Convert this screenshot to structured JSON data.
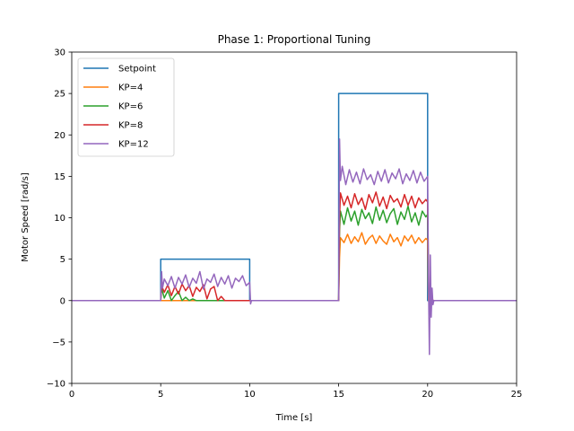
{
  "chart_data": {
    "type": "line",
    "title": "Phase 1: Proportional Tuning",
    "xlabel": "Time [s]",
    "ylabel": "Motor Speed [rad/s]",
    "xlim": [
      0,
      25
    ],
    "ylim": [
      -10,
      30
    ],
    "xticks": [
      0,
      5,
      10,
      15,
      20,
      25
    ],
    "xtick_labels": [
      "0",
      "5",
      "10",
      "15",
      "20",
      "25"
    ],
    "yticks": [
      -10,
      -5,
      0,
      5,
      10,
      15,
      20,
      25,
      30
    ],
    "ytick_labels": [
      "−10",
      "−5",
      "0",
      "5",
      "10",
      "15",
      "20",
      "25",
      "30"
    ],
    "grid": false,
    "legend_position": "top-left",
    "series": [
      {
        "name": "Setpoint",
        "color": "#1f77b4",
        "points": [
          [
            0,
            0
          ],
          [
            5,
            0
          ],
          [
            5,
            5
          ],
          [
            10,
            5
          ],
          [
            10,
            0
          ],
          [
            15,
            0
          ],
          [
            15,
            25
          ],
          [
            20,
            25
          ],
          [
            20,
            0
          ],
          [
            25,
            0
          ]
        ]
      },
      {
        "name": "KP=4",
        "color": "#ff7f0e",
        "points": [
          [
            0,
            0
          ],
          [
            15,
            0
          ],
          [
            15.05,
            5.2
          ],
          [
            15.1,
            7.6
          ],
          [
            15.3,
            7.0
          ],
          [
            15.5,
            8.0
          ],
          [
            15.7,
            6.9
          ],
          [
            15.9,
            7.7
          ],
          [
            16.1,
            7.1
          ],
          [
            16.3,
            8.2
          ],
          [
            16.5,
            6.8
          ],
          [
            16.7,
            7.5
          ],
          [
            16.9,
            7.9
          ],
          [
            17.1,
            6.9
          ],
          [
            17.3,
            7.8
          ],
          [
            17.5,
            7.2
          ],
          [
            17.7,
            6.8
          ],
          [
            17.9,
            8.0
          ],
          [
            18.1,
            7.1
          ],
          [
            18.3,
            7.6
          ],
          [
            18.5,
            6.6
          ],
          [
            18.7,
            7.8
          ],
          [
            18.9,
            7.2
          ],
          [
            19.1,
            7.9
          ],
          [
            19.3,
            6.9
          ],
          [
            19.5,
            7.6
          ],
          [
            19.7,
            7.0
          ],
          [
            19.9,
            7.5
          ],
          [
            20,
            7.3
          ],
          [
            20.05,
            0
          ],
          [
            25,
            0
          ]
        ]
      },
      {
        "name": "KP=6",
        "color": "#2ca02c",
        "points": [
          [
            0,
            0
          ],
          [
            5,
            0
          ],
          [
            5.05,
            1.5
          ],
          [
            5.2,
            0.3
          ],
          [
            5.4,
            1.2
          ],
          [
            5.6,
            0
          ],
          [
            5.8,
            0.6
          ],
          [
            6.0,
            1.1
          ],
          [
            6.2,
            0
          ],
          [
            6.4,
            0.4
          ],
          [
            6.6,
            0
          ],
          [
            6.8,
            0.2
          ],
          [
            7.0,
            0
          ],
          [
            10,
            0
          ],
          [
            15,
            0
          ],
          [
            15.05,
            8.5
          ],
          [
            15.1,
            10.8
          ],
          [
            15.3,
            9.2
          ],
          [
            15.5,
            11.2
          ],
          [
            15.7,
            9.6
          ],
          [
            15.9,
            10.8
          ],
          [
            16.1,
            9.1
          ],
          [
            16.3,
            11.0
          ],
          [
            16.5,
            9.9
          ],
          [
            16.7,
            10.6
          ],
          [
            16.9,
            9.3
          ],
          [
            17.1,
            11.3
          ],
          [
            17.3,
            9.7
          ],
          [
            17.5,
            10.9
          ],
          [
            17.7,
            9.4
          ],
          [
            17.9,
            10.5
          ],
          [
            18.1,
            11.1
          ],
          [
            18.3,
            9.2
          ],
          [
            18.5,
            10.7
          ],
          [
            18.7,
            9.8
          ],
          [
            18.9,
            11.4
          ],
          [
            19.1,
            9.5
          ],
          [
            19.3,
            10.6
          ],
          [
            19.5,
            9.1
          ],
          [
            19.7,
            10.8
          ],
          [
            19.9,
            10.1
          ],
          [
            20,
            10.4
          ],
          [
            20.05,
            1.5
          ],
          [
            20.1,
            -1.0
          ],
          [
            20.2,
            0
          ],
          [
            25,
            0
          ]
        ]
      },
      {
        "name": "KP=8",
        "color": "#d62728",
        "points": [
          [
            0,
            0
          ],
          [
            5,
            0
          ],
          [
            5.05,
            1.8
          ],
          [
            5.2,
            1.0
          ],
          [
            5.4,
            1.9
          ],
          [
            5.6,
            0.6
          ],
          [
            5.8,
            1.7
          ],
          [
            6.0,
            0.8
          ],
          [
            6.2,
            2.0
          ],
          [
            6.4,
            1.2
          ],
          [
            6.6,
            1.8
          ],
          [
            6.8,
            0.5
          ],
          [
            7.0,
            1.6
          ],
          [
            7.2,
            1.1
          ],
          [
            7.4,
            1.9
          ],
          [
            7.6,
            0.2
          ],
          [
            7.8,
            1.4
          ],
          [
            8.0,
            1.7
          ],
          [
            8.2,
            0
          ],
          [
            8.4,
            0.5
          ],
          [
            8.6,
            0
          ],
          [
            10,
            0
          ],
          [
            15,
            0
          ],
          [
            15.05,
            10.0
          ],
          [
            15.1,
            13.0
          ],
          [
            15.3,
            11.5
          ],
          [
            15.5,
            12.6
          ],
          [
            15.7,
            11.2
          ],
          [
            15.9,
            12.9
          ],
          [
            16.1,
            11.6
          ],
          [
            16.3,
            12.4
          ],
          [
            16.5,
            11.0
          ],
          [
            16.7,
            12.8
          ],
          [
            16.9,
            11.8
          ],
          [
            17.1,
            13.1
          ],
          [
            17.3,
            11.4
          ],
          [
            17.5,
            12.5
          ],
          [
            17.7,
            11.1
          ],
          [
            17.9,
            12.7
          ],
          [
            18.1,
            11.9
          ],
          [
            18.3,
            12.3
          ],
          [
            18.5,
            11.3
          ],
          [
            18.7,
            12.8
          ],
          [
            18.9,
            11.5
          ],
          [
            19.1,
            12.6
          ],
          [
            19.3,
            11.2
          ],
          [
            19.5,
            12.4
          ],
          [
            19.7,
            11.7
          ],
          [
            19.9,
            12.2
          ],
          [
            20,
            11.9
          ],
          [
            20.05,
            3.0
          ],
          [
            20.1,
            -2.0
          ],
          [
            20.2,
            0.8
          ],
          [
            20.3,
            0
          ],
          [
            25,
            0
          ]
        ]
      },
      {
        "name": "KP=12",
        "color": "#9467bd",
        "points": [
          [
            0,
            0
          ],
          [
            5,
            0
          ],
          [
            5.05,
            3.5
          ],
          [
            5.1,
            1.5
          ],
          [
            5.2,
            2.6
          ],
          [
            5.4,
            1.8
          ],
          [
            5.6,
            2.9
          ],
          [
            5.8,
            1.5
          ],
          [
            6.0,
            2.8
          ],
          [
            6.2,
            2.0
          ],
          [
            6.4,
            3.1
          ],
          [
            6.6,
            1.6
          ],
          [
            6.8,
            2.7
          ],
          [
            7.0,
            2.1
          ],
          [
            7.2,
            3.5
          ],
          [
            7.4,
            1.4
          ],
          [
            7.6,
            2.6
          ],
          [
            7.8,
            2.2
          ],
          [
            8.0,
            3.2
          ],
          [
            8.2,
            1.7
          ],
          [
            8.4,
            2.8
          ],
          [
            8.6,
            2.0
          ],
          [
            8.8,
            3.0
          ],
          [
            9.0,
            1.5
          ],
          [
            9.2,
            2.7
          ],
          [
            9.4,
            2.3
          ],
          [
            9.6,
            3.0
          ],
          [
            9.8,
            1.8
          ],
          [
            10.0,
            2.2
          ],
          [
            10.05,
            -0.4
          ],
          [
            10.1,
            0
          ],
          [
            15,
            0
          ],
          [
            15.05,
            19.5
          ],
          [
            15.1,
            14.5
          ],
          [
            15.2,
            16.2
          ],
          [
            15.4,
            14.0
          ],
          [
            15.6,
            15.8
          ],
          [
            15.8,
            14.3
          ],
          [
            16.0,
            15.5
          ],
          [
            16.2,
            14.1
          ],
          [
            16.4,
            15.9
          ],
          [
            16.6,
            14.6
          ],
          [
            16.8,
            15.2
          ],
          [
            17.0,
            14.0
          ],
          [
            17.2,
            15.6
          ],
          [
            17.4,
            14.4
          ],
          [
            17.6,
            15.8
          ],
          [
            17.8,
            14.2
          ],
          [
            18.0,
            15.4
          ],
          [
            18.2,
            14.7
          ],
          [
            18.4,
            15.9
          ],
          [
            18.6,
            14.1
          ],
          [
            18.8,
            15.3
          ],
          [
            19.0,
            14.5
          ],
          [
            19.2,
            15.7
          ],
          [
            19.4,
            14.2
          ],
          [
            19.6,
            15.5
          ],
          [
            19.8,
            14.4
          ],
          [
            20.0,
            15.0
          ],
          [
            20.05,
            2.0
          ],
          [
            20.1,
            -6.5
          ],
          [
            20.15,
            5.5
          ],
          [
            20.2,
            -2.0
          ],
          [
            20.25,
            1.5
          ],
          [
            20.3,
            -0.5
          ],
          [
            20.35,
            0
          ],
          [
            25,
            0
          ]
        ]
      }
    ]
  }
}
